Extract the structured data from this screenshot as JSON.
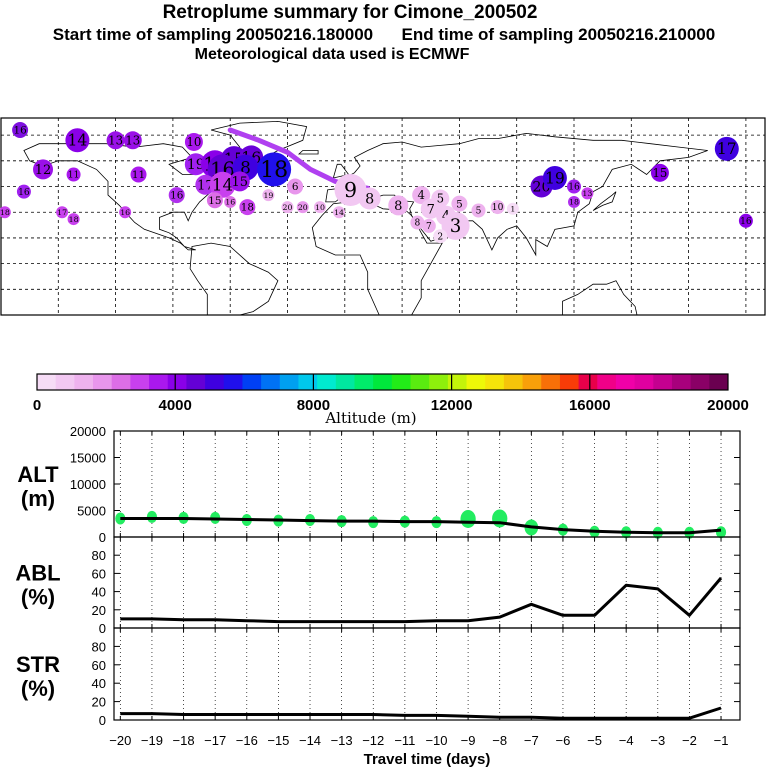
{
  "header": {
    "title": "Retroplume summary for Cimone_200502",
    "start_label": "Start time of sampling 20050216.180000",
    "end_label": "End time of sampling 20050216.210000",
    "met_label": "Meteorological data used is ECMWF"
  },
  "colorbar": {
    "title": "Altitude (m)",
    "tick_labels": [
      "0",
      "4000",
      "8000",
      "12000",
      "16000",
      "20000"
    ],
    "colors": [
      "#f6dcf6",
      "#f2c8f2",
      "#eeb2ee",
      "#e896ec",
      "#dc6ee6",
      "#c840ee",
      "#aa18ee",
      "#8a00e8",
      "#6400d6",
      "#3f00e0",
      "#2010ec",
      "#0040f4",
      "#0072f4",
      "#00a0f0",
      "#00c8ec",
      "#00ead0",
      "#00e8a0",
      "#00ec6a",
      "#00e83c",
      "#22ec18",
      "#5aec10",
      "#8ef00c",
      "#c4f40a",
      "#eef808",
      "#f6e40a",
      "#f6c40a",
      "#f8a00a",
      "#f87008",
      "#f83c08",
      "#e8004a",
      "#f00088",
      "#f000a8",
      "#e000a0",
      "#c40090",
      "#a8007c",
      "#8a0066",
      "#6a0050"
    ]
  },
  "map": {
    "circles": [
      {
        "lon": -170,
        "lat": 78,
        "label": "16",
        "color": "#7e10e0",
        "r": 8
      },
      {
        "lon": -140,
        "lat": 72,
        "label": "14",
        "color": "#8a00e8",
        "r": 12
      },
      {
        "lon": -120,
        "lat": 72,
        "label": "13",
        "color": "#9a10e8",
        "r": 9
      },
      {
        "lon": -111,
        "lat": 72,
        "label": "13",
        "color": "#9a10e8",
        "r": 9
      },
      {
        "lon": -79,
        "lat": 71,
        "label": "10",
        "color": "#aa18ee",
        "r": 9
      },
      {
        "lon": -158,
        "lat": 55,
        "label": "12",
        "color": "#9a10e8",
        "r": 10
      },
      {
        "lon": -142,
        "lat": 52,
        "label": "11",
        "color": "#aa18ee",
        "r": 7
      },
      {
        "lon": -108,
        "lat": 52,
        "label": "11",
        "color": "#aa18ee",
        "r": 8
      },
      {
        "lon": -78,
        "lat": 58,
        "label": "19",
        "color": "#a020f0",
        "r": 11
      },
      {
        "lon": -68,
        "lat": 58,
        "label": "15",
        "color": "#8a00e8",
        "r": 14
      },
      {
        "lon": -58,
        "lat": 61,
        "label": "15",
        "color": "#6400d6",
        "r": 13
      },
      {
        "lon": -49,
        "lat": 62,
        "label": "16",
        "color": "#6a00d8",
        "r": 12
      },
      {
        "lon": -64,
        "lat": 55,
        "label": "16",
        "color": "#6400d6",
        "r": 15
      },
      {
        "lon": -52,
        "lat": 56,
        "label": "8",
        "color": "#3f00e0",
        "r": 13
      },
      {
        "lon": -37,
        "lat": 55,
        "label": "18",
        "color": "#2010ec",
        "r": 17
      },
      {
        "lon": -73,
        "lat": 46,
        "label": "17",
        "color": "#b030ee",
        "r": 10
      },
      {
        "lon": -64,
        "lat": 46,
        "label": "14",
        "color": "#c840ee",
        "r": 13
      },
      {
        "lon": -55,
        "lat": 48,
        "label": "15",
        "color": "#9a10e8",
        "r": 10
      },
      {
        "lon": -88,
        "lat": 40,
        "label": "16",
        "color": "#b030ee",
        "r": 8
      },
      {
        "lon": -68,
        "lat": 37,
        "label": "15",
        "color": "#dc6ee6",
        "r": 8
      },
      {
        "lon": -60,
        "lat": 36,
        "label": "16",
        "color": "#dc6ee6",
        "r": 6
      },
      {
        "lon": -51,
        "lat": 33,
        "label": "18",
        "color": "#c840ee",
        "r": 8
      },
      {
        "lon": -26,
        "lat": 45,
        "label": "6",
        "color": "#e896ec",
        "r": 8
      },
      {
        "lon": -40,
        "lat": 40,
        "label": "19",
        "color": "#eeb2ee",
        "r": 6
      },
      {
        "lon": -30,
        "lat": 33,
        "label": "20",
        "color": "#eeb2ee",
        "r": 6
      },
      {
        "lon": -22,
        "lat": 33,
        "label": "20",
        "color": "#e896ec",
        "r": 6
      },
      {
        "lon": -13,
        "lat": 33,
        "label": "10",
        "color": "#eeb2ee",
        "r": 6
      },
      {
        "lon": -3,
        "lat": 30,
        "label": "14",
        "color": "#eeb2ee",
        "r": 6
      },
      {
        "lon": 3,
        "lat": 43,
        "label": "9",
        "color": "#f2c8f2",
        "r": 16
      },
      {
        "lon": 13,
        "lat": 38,
        "label": "8",
        "color": "#f2c8f2",
        "r": 11
      },
      {
        "lon": 28,
        "lat": 34,
        "label": "8",
        "color": "#eeb2ee",
        "r": 10
      },
      {
        "lon": 40,
        "lat": 40,
        "label": "4",
        "color": "#eeb2ee",
        "r": 9
      },
      {
        "lon": 50,
        "lat": 38,
        "label": "5",
        "color": "#f2c8f2",
        "r": 9
      },
      {
        "lon": 45,
        "lat": 32,
        "label": "7",
        "color": "#f2c8f2",
        "r": 10
      },
      {
        "lon": 53,
        "lat": 28,
        "label": "4",
        "color": "#f2c8f2",
        "r": 10
      },
      {
        "lon": 60,
        "lat": 35,
        "label": "5",
        "color": "#eeb2ee",
        "r": 8
      },
      {
        "lon": 58,
        "lat": 22,
        "label": "3",
        "color": "#f2c8f2",
        "r": 14
      },
      {
        "lon": 38,
        "lat": 24,
        "label": "8",
        "color": "#eeb2ee",
        "r": 7
      },
      {
        "lon": 44,
        "lat": 22,
        "label": "7",
        "color": "#eeb2ee",
        "r": 7
      },
      {
        "lon": 50,
        "lat": 16,
        "label": "2",
        "color": "#f6dcf6",
        "r": 7
      },
      {
        "lon": 70,
        "lat": 31,
        "label": "5",
        "color": "#eeb2ee",
        "r": 7
      },
      {
        "lon": 80,
        "lat": 33,
        "label": "10",
        "color": "#eeb2ee",
        "r": 7
      },
      {
        "lon": 88,
        "lat": 32,
        "label": "1",
        "color": "#f6dcf6",
        "r": 6
      },
      {
        "lon": 103,
        "lat": 45,
        "label": "20",
        "color": "#6400d6",
        "r": 11
      },
      {
        "lon": 110,
        "lat": 50,
        "label": "19",
        "color": "#3f00e0",
        "r": 12
      },
      {
        "lon": 120,
        "lat": 45,
        "label": "16",
        "color": "#a020f0",
        "r": 7
      },
      {
        "lon": 127,
        "lat": 41,
        "label": "13",
        "color": "#c840ee",
        "r": 6
      },
      {
        "lon": 120,
        "lat": 36,
        "label": "18",
        "color": "#b030ee",
        "r": 6
      },
      {
        "lon": 165,
        "lat": 53,
        "label": "15",
        "color": "#8a00e8",
        "r": 9
      },
      {
        "lon": 200,
        "lat": 67,
        "label": "17",
        "color": "#3f00e0",
        "r": 12
      },
      {
        "lon": 210,
        "lat": 25,
        "label": "16",
        "color": "#8a00e8",
        "r": 7
      },
      {
        "lon": -168,
        "lat": 42,
        "label": "16",
        "color": "#a020f0",
        "r": 7
      },
      {
        "lon": -178,
        "lat": 30,
        "label": "18",
        "color": "#c840ee",
        "r": 6
      },
      {
        "lon": -148,
        "lat": 30,
        "label": "17",
        "color": "#c840ee",
        "r": 6
      },
      {
        "lon": -142,
        "lat": 26,
        "label": "18",
        "color": "#c840ee",
        "r": 6
      },
      {
        "lon": -115,
        "lat": 30,
        "label": "16",
        "color": "#c840ee",
        "r": 6
      }
    ]
  },
  "chart_data": [
    {
      "type": "line",
      "panel_label_top": "ALT",
      "panel_label_bottom": "(m)",
      "ylim": [
        0,
        20000
      ],
      "y_ticks": [
        "0",
        "5000",
        "10000",
        "15000",
        "20000"
      ],
      "x": [
        -20,
        -19,
        -18,
        -17,
        -16,
        -15,
        -14,
        -13,
        -12,
        -11,
        -10,
        -9,
        -8,
        -7,
        -6,
        -5,
        -4,
        -3,
        -2,
        -1
      ],
      "values": [
        3500,
        3500,
        3500,
        3400,
        3300,
        3200,
        3100,
        3000,
        3000,
        2900,
        2900,
        2800,
        2700,
        1900,
        1400,
        1100,
        900,
        800,
        800,
        1300
      ],
      "scatter": [
        {
          "x": -20,
          "y": 3500
        },
        {
          "x": -19,
          "y": 3800
        },
        {
          "x": -18,
          "y": 3600
        },
        {
          "x": -17,
          "y": 3600
        },
        {
          "x": -16,
          "y": 3200
        },
        {
          "x": -15,
          "y": 3100
        },
        {
          "x": -14,
          "y": 3200
        },
        {
          "x": -13,
          "y": 3000
        },
        {
          "x": -12,
          "y": 2800
        },
        {
          "x": -11,
          "y": 2900
        },
        {
          "x": -10,
          "y": 2800
        },
        {
          "x": -9,
          "y": 3400
        },
        {
          "x": -8,
          "y": 3500
        },
        {
          "x": -7,
          "y": 1800
        },
        {
          "x": -6,
          "y": 1400
        },
        {
          "x": -5,
          "y": 1000
        },
        {
          "x": -4,
          "y": 900
        },
        {
          "x": -3,
          "y": 800
        },
        {
          "x": -2,
          "y": 800
        },
        {
          "x": -1,
          "y": 900
        }
      ]
    },
    {
      "type": "line",
      "panel_label_top": "ABL",
      "panel_label_bottom": "(%)",
      "ylim": [
        0,
        100
      ],
      "y_ticks": [
        "0",
        "20",
        "40",
        "60",
        "80"
      ],
      "x": [
        -20,
        -19,
        -18,
        -17,
        -16,
        -15,
        -14,
        -13,
        -12,
        -11,
        -10,
        -9,
        -8,
        -7,
        -6,
        -5,
        -4,
        -3,
        -2,
        -1
      ],
      "values": [
        10,
        10,
        9,
        9,
        8,
        7,
        7,
        7,
        7,
        7,
        8,
        8,
        12,
        26,
        14,
        14,
        47,
        43,
        14,
        55
      ]
    },
    {
      "type": "line",
      "panel_label_top": "STR",
      "panel_label_bottom": "(%)",
      "ylim": [
        0,
        100
      ],
      "y_ticks": [
        "0",
        "20",
        "40",
        "60",
        "80"
      ],
      "x": [
        -20,
        -19,
        -18,
        -17,
        -16,
        -15,
        -14,
        -13,
        -12,
        -11,
        -10,
        -9,
        -8,
        -7,
        -6,
        -5,
        -4,
        -3,
        -2,
        -1
      ],
      "values": [
        7,
        7,
        6,
        6,
        6,
        6,
        6,
        6,
        6,
        5,
        5,
        4,
        3,
        3,
        2,
        2,
        2,
        2,
        2,
        13
      ],
      "xlabel": "Travel time (days)",
      "x_tick_labels": [
        "−20",
        "−19",
        "−18",
        "−17",
        "−16",
        "−15",
        "−14",
        "−13",
        "−12",
        "−11",
        "−10",
        "−9",
        "−8",
        "−7",
        "−6",
        "−5",
        "−4",
        "−3",
        "−2",
        "−1"
      ]
    }
  ]
}
